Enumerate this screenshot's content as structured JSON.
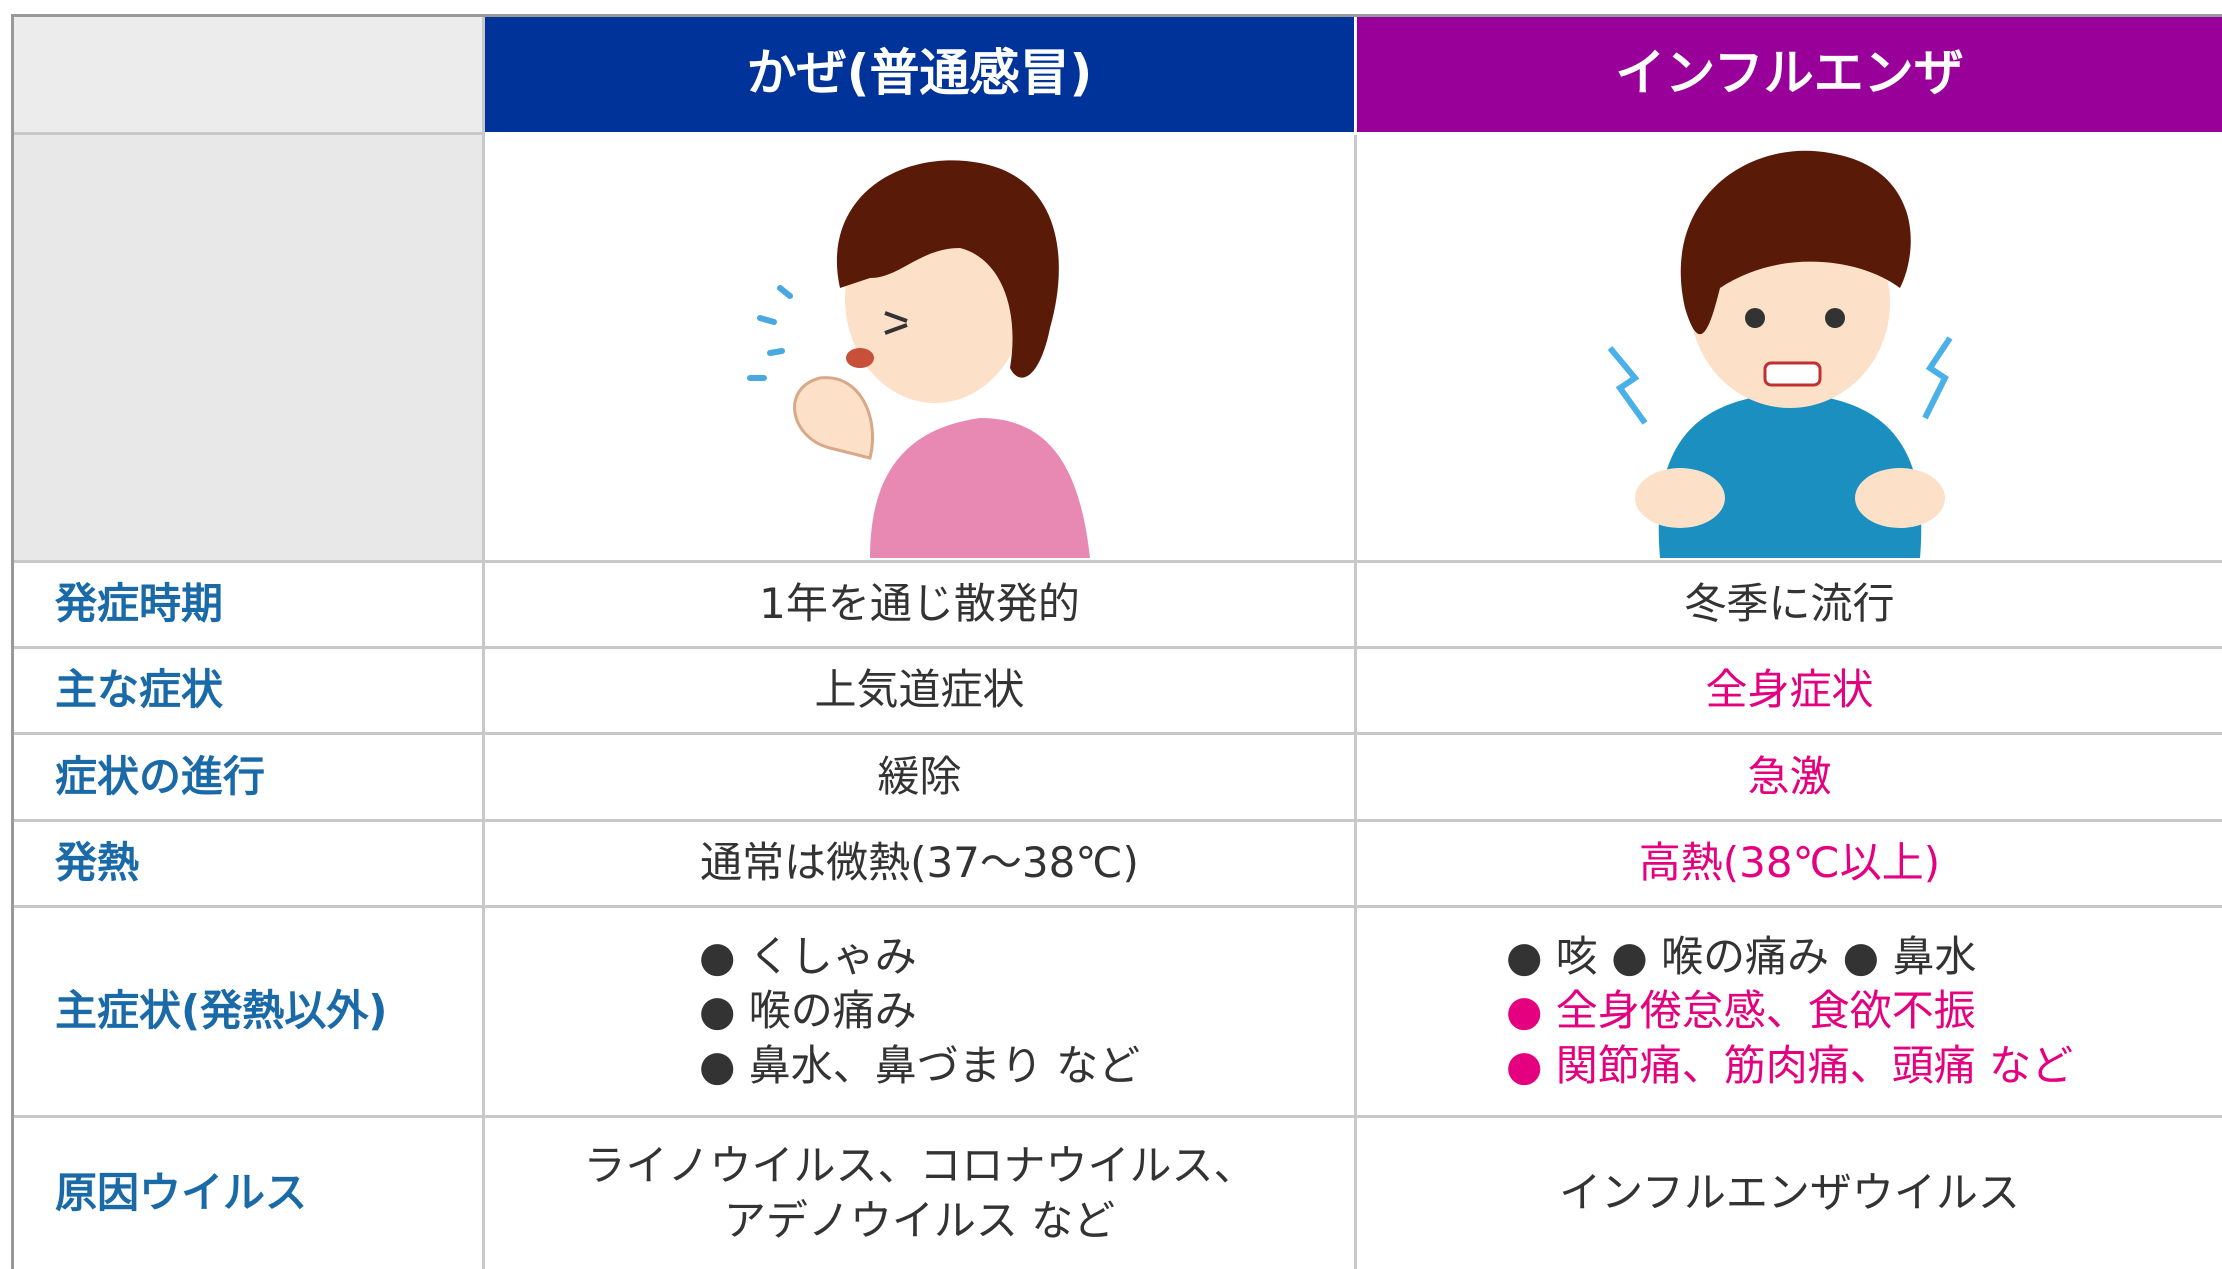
{
  "table": {
    "header": [
      "かぜ(普通感冒)",
      "インフルエンザ"
    ],
    "rows": [
      {
        "label": "発症時期",
        "cold": [
          "1年を通じ散発的"
        ],
        "flu": [
          "冬季に流行"
        ]
      },
      {
        "label": "主な症状",
        "cold": [
          "上気道症状"
        ],
        "flu": [
          "全身症状"
        ]
      },
      {
        "label": "症状の進行",
        "cold": [
          "緩除"
        ],
        "flu": [
          "急激"
        ]
      },
      {
        "label": "発熱",
        "cold": [
          "通常は微熱(37〜38℃)"
        ],
        "flu": [
          "高熱(38℃以上)"
        ]
      },
      {
        "label": "主症状(発熱以外)",
        "cold": [
          "● くしゃみ",
          "● 喉の痛み",
          "● 鼻水、鼻づまり など"
        ],
        "flu": [
          "● 咳 ● 喉の痛み ● 鼻水",
          "● 全身倦怠感、食欲不振",
          "● 関節痛、筋肉痛、頭痛 など"
        ]
      },
      {
        "label": "原因ウイルス",
        "cold": [
          "ライノウイルス、コロナウイルス、",
          "アデノウイルス など"
        ],
        "flu": [
          "インフルエンザウイルス"
        ]
      }
    ]
  }
}
